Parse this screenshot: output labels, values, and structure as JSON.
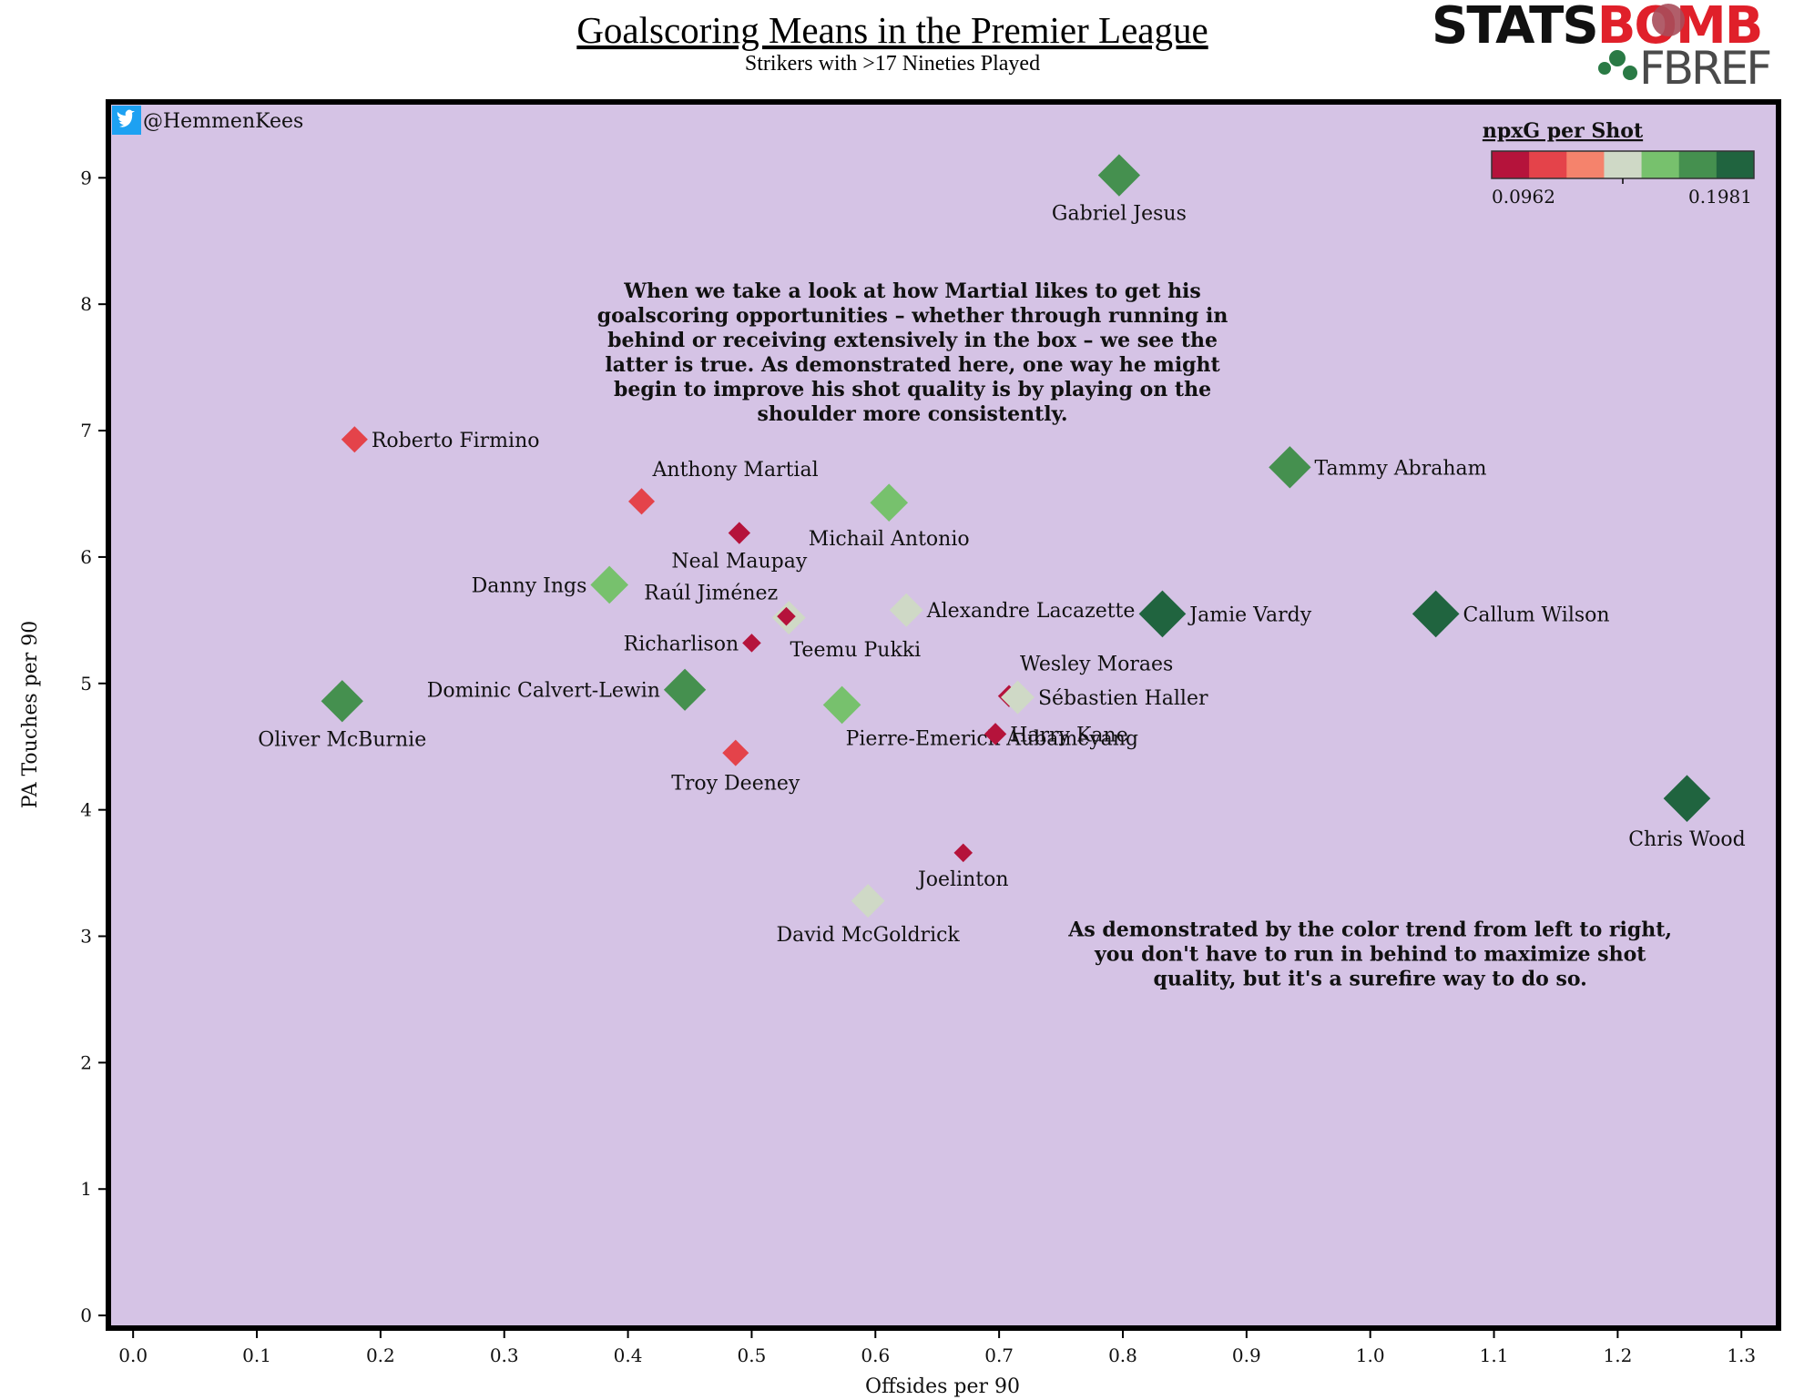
{
  "chart_data": {
    "type": "scatter",
    "title": "Goalscoring Means in the Premier League",
    "subtitle": "Strikers with >17 Nineties Played",
    "xlabel": "Offsides per 90",
    "ylabel": "PA Touches per 90",
    "xlim": [
      -0.02,
      1.33
    ],
    "ylim": [
      -0.1,
      9.6
    ],
    "x_ticks": [
      "0.0",
      "0.1",
      "0.2",
      "0.3",
      "0.4",
      "0.5",
      "0.6",
      "0.7",
      "0.8",
      "0.9",
      "1.0",
      "1.1",
      "1.2",
      "1.3"
    ],
    "x_tick_values": [
      0.0,
      0.1,
      0.2,
      0.3,
      0.4,
      0.5,
      0.6,
      0.7,
      0.8,
      0.9,
      1.0,
      1.1,
      1.2,
      1.3
    ],
    "y_ticks": [
      "0",
      "1",
      "2",
      "3",
      "4",
      "5",
      "6",
      "7",
      "8",
      "9"
    ],
    "y_tick_values": [
      0,
      1,
      2,
      3,
      4,
      5,
      6,
      7,
      8,
      9
    ],
    "grid": false,
    "background_color": "#d5c3e5",
    "color_scale": {
      "title": "npxG per Shot",
      "min_label": "0.0962",
      "max_label": "0.1981",
      "min": 0.0962,
      "max": 0.1981,
      "colors": [
        "#b5133b",
        "#e4434a",
        "#f5836c",
        "#cfd9c6",
        "#77c16d",
        "#45904f",
        "#20643f"
      ]
    },
    "legend_position": "top-right",
    "credit": "@HemmenKees",
    "annotations": [
      {
        "text": [
          "When we take a look at how Martial likes to get his",
          "goalscoring opportunities – whether through running in",
          "behind or receiving extensively in the box – we see the",
          "latter is true. As demonstrated here, one way he might",
          "begin to improve his shot quality is by playing on the",
          "shoulder more consistently."
        ],
        "x": 0.63,
        "y": 8.05
      },
      {
        "text": [
          "As demonstrated by the color trend from left to right,",
          "you don't have to run in behind to maximize shot",
          "quality, but it's a surefire way to do so."
        ],
        "x": 1.0,
        "y": 3.0
      }
    ],
    "points": [
      {
        "name": "Gabriel Jesus",
        "x": 0.797,
        "y": 9.02,
        "npxg_per_shot": 0.18,
        "label_side": "below"
      },
      {
        "name": "Roberto Firmino",
        "x": 0.179,
        "y": 6.93,
        "npxg_per_shot": 0.125,
        "label_side": "right"
      },
      {
        "name": "Tammy Abraham",
        "x": 0.935,
        "y": 6.71,
        "npxg_per_shot": 0.18,
        "label_side": "right"
      },
      {
        "name": "Anthony Martial",
        "x": 0.411,
        "y": 6.44,
        "npxg_per_shot": 0.125,
        "label_side": "above-right"
      },
      {
        "name": "Michail Antonio",
        "x": 0.611,
        "y": 6.43,
        "npxg_per_shot": 0.165,
        "label_side": "below"
      },
      {
        "name": "Neal Maupay",
        "x": 0.49,
        "y": 6.19,
        "npxg_per_shot": 0.11,
        "label_side": "below"
      },
      {
        "name": "Danny Ings",
        "x": 0.385,
        "y": 5.78,
        "npxg_per_shot": 0.165,
        "label_side": "left"
      },
      {
        "name": "Raúl Jiménez",
        "x": 0.53,
        "y": 5.52,
        "npxg_per_shot": 0.15,
        "label_side": "above-left"
      },
      {
        "name": "Teemu Pukki",
        "x": 0.528,
        "y": 5.53,
        "npxg_per_shot": 0.098,
        "label_side": "below-right"
      },
      {
        "name": "Alexandre Lacazette",
        "x": 0.625,
        "y": 5.58,
        "npxg_per_shot": 0.15,
        "label_side": "right"
      },
      {
        "name": "Jamie Vardy",
        "x": 0.832,
        "y": 5.55,
        "npxg_per_shot": 0.197,
        "label_side": "right"
      },
      {
        "name": "Callum Wilson",
        "x": 1.053,
        "y": 5.55,
        "npxg_per_shot": 0.197,
        "label_side": "right"
      },
      {
        "name": "Richarlison",
        "x": 0.5,
        "y": 5.32,
        "npxg_per_shot": 0.098,
        "label_side": "left"
      },
      {
        "name": "Wesley Moraes",
        "x": 0.708,
        "y": 4.9,
        "npxg_per_shot": 0.11,
        "label_side": "above-right"
      },
      {
        "name": "Sébastien Haller",
        "x": 0.715,
        "y": 4.89,
        "npxg_per_shot": 0.15,
        "label_side": "right"
      },
      {
        "name": "Oliver McBurnie",
        "x": 0.169,
        "y": 4.86,
        "npxg_per_shot": 0.18,
        "label_side": "below"
      },
      {
        "name": "Dominic Calvert-Lewin",
        "x": 0.446,
        "y": 4.95,
        "npxg_per_shot": 0.18,
        "label_side": "left"
      },
      {
        "name": "Pierre-Emerick Aubameyang",
        "x": 0.573,
        "y": 4.83,
        "npxg_per_shot": 0.165,
        "label_side": "below-right"
      },
      {
        "name": "Harry Kane",
        "x": 0.697,
        "y": 4.6,
        "npxg_per_shot": 0.11,
        "label_side": "right"
      },
      {
        "name": "Troy Deeney",
        "x": 0.487,
        "y": 4.45,
        "npxg_per_shot": 0.125,
        "label_side": "below"
      },
      {
        "name": "Chris Wood",
        "x": 1.256,
        "y": 4.09,
        "npxg_per_shot": 0.197,
        "label_side": "below"
      },
      {
        "name": "Joelinton",
        "x": 0.671,
        "y": 3.66,
        "npxg_per_shot": 0.098,
        "label_side": "below"
      },
      {
        "name": "David McGoldrick",
        "x": 0.594,
        "y": 3.28,
        "npxg_per_shot": 0.15,
        "label_side": "below"
      }
    ]
  },
  "logo": {
    "stats": "STATS",
    "bomb": "BOMB",
    "fbref": "FBREF"
  }
}
